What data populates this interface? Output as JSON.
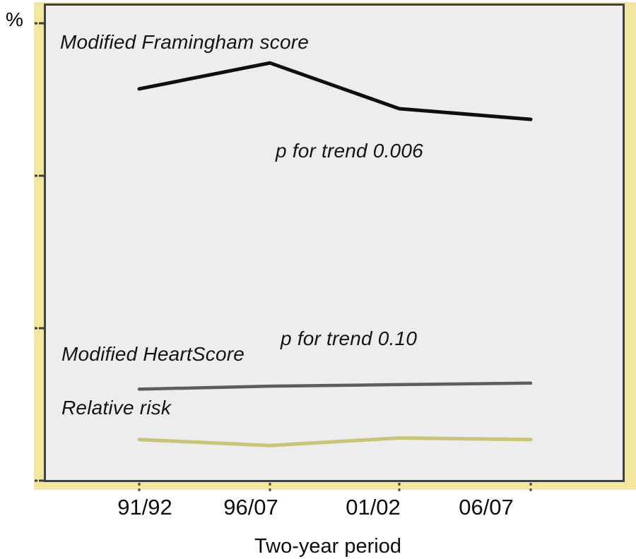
{
  "figure": {
    "type_hint": "published-journal-line-figure"
  },
  "colors": {
    "frame_yellow": "#f1e7a0",
    "plot_background": "#ededed",
    "plot_border": "#404040",
    "y_tick": "#3c3c3c",
    "x_tick_upper_dot": "#4a4a4a",
    "x_tick_lower_dot": "#6e4a45",
    "text": "#111111"
  },
  "chart_data": {
    "type": "line",
    "title": "",
    "xlabel": "Two-year period",
    "ylabel": "%",
    "categories": [
      "91/92",
      "96/07",
      "01/02",
      "06/07"
    ],
    "series": [
      {
        "name": "Modified Framingham score",
        "color": "#0f0f0f",
        "values": [
          2.57,
          2.74,
          2.44,
          2.37
        ],
        "annotation": "p for trend 0.006"
      },
      {
        "name": "Modified HeartScore",
        "color": "#5d5d5d",
        "values": [
          0.6,
          0.62,
          0.63,
          0.64
        ],
        "annotation": "p for trend 0.10"
      },
      {
        "name": "Relative risk",
        "color": "#c9c47a",
        "values": [
          0.27,
          0.23,
          0.28,
          0.27
        ],
        "annotation": ""
      }
    ],
    "ylim": [
      0,
      3.13
    ],
    "yticks": [
      0,
      1,
      2,
      3
    ],
    "ytick_labels": [
      "",
      "",
      "",
      ""
    ],
    "y_axis_numeric_labels_shown": false,
    "grid": false,
    "legend_position": "inline-labels-near-lines"
  }
}
